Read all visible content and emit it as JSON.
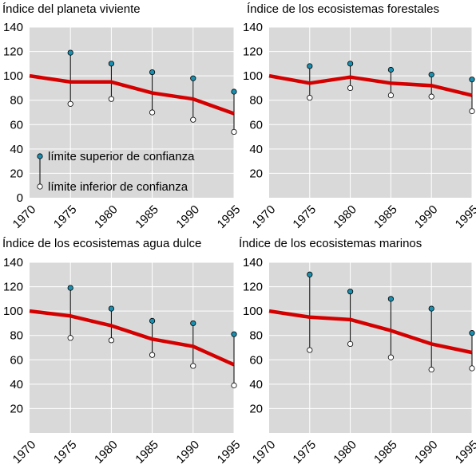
{
  "colors": {
    "plot_background": "#d9d9d9",
    "grid": "#ffffff",
    "index_line": "#d40000",
    "upper_marker": "#1b8fb0",
    "lower_marker": "#ffffff",
    "whisker": "#000000"
  },
  "legend": {
    "upper_label": "límite superior de confianza",
    "lower_label": "límite inferior de confianza"
  },
  "chart_data": [
    {
      "type": "line",
      "title": "Índice del planeta viviente",
      "xlabel": "",
      "ylabel": "",
      "x": [
        1970,
        1975,
        1980,
        1985,
        1990,
        1995
      ],
      "xtick_labels": [
        "1970",
        "1975",
        "1980",
        "1985",
        "1990",
        "1995"
      ],
      "ytick_labels": [
        "0",
        "20",
        "40",
        "60",
        "80",
        "100",
        "120",
        "140"
      ],
      "ylim": [
        0,
        140
      ],
      "grid": true,
      "legend_position": "bottom-left",
      "series": [
        {
          "values": [
            100,
            95,
            95,
            86,
            81,
            69
          ]
        }
      ],
      "confidence": [
        {
          "x": 1975,
          "upper": 119,
          "lower": 77
        },
        {
          "x": 1980,
          "upper": 110,
          "lower": 81
        },
        {
          "x": 1985,
          "upper": 103,
          "lower": 70
        },
        {
          "x": 1990,
          "upper": 98,
          "lower": 64
        },
        {
          "x": 1995,
          "upper": 87,
          "lower": 54
        }
      ]
    },
    {
      "type": "line",
      "title": "Índice de los ecosistemas forestales",
      "xlabel": "",
      "ylabel": "",
      "x": [
        1970,
        1975,
        1980,
        1985,
        1990,
        1995
      ],
      "xtick_labels": [
        "1970",
        "1975",
        "1980",
        "1985",
        "1990",
        "1995"
      ],
      "ytick_labels": [
        "20",
        "40",
        "60",
        "80",
        "100",
        "120",
        "140"
      ],
      "ylim": [
        0,
        140
      ],
      "grid": true,
      "series": [
        {
          "values": [
            100,
            94,
            99,
            94,
            92,
            84
          ]
        }
      ],
      "confidence": [
        {
          "x": 1975,
          "upper": 108,
          "lower": 82
        },
        {
          "x": 1980,
          "upper": 110,
          "lower": 90
        },
        {
          "x": 1985,
          "upper": 105,
          "lower": 84
        },
        {
          "x": 1990,
          "upper": 101,
          "lower": 83
        },
        {
          "x": 1995,
          "upper": 97,
          "lower": 71
        }
      ]
    },
    {
      "type": "line",
      "title": "Índice de los ecosistemas agua dulce",
      "xlabel": "",
      "ylabel": "",
      "x": [
        1970,
        1975,
        1980,
        1985,
        1990,
        1995
      ],
      "xtick_labels": [
        "1970",
        "1975",
        "1980",
        "1985",
        "1990",
        "1995"
      ],
      "ytick_labels": [
        "20",
        "40",
        "60",
        "80",
        "100",
        "120",
        "140"
      ],
      "ylim": [
        0,
        140
      ],
      "grid": true,
      "series": [
        {
          "values": [
            100,
            96,
            88,
            77,
            71,
            56
          ]
        }
      ],
      "confidence": [
        {
          "x": 1975,
          "upper": 119,
          "lower": 78
        },
        {
          "x": 1980,
          "upper": 102,
          "lower": 76
        },
        {
          "x": 1985,
          "upper": 92,
          "lower": 64
        },
        {
          "x": 1990,
          "upper": 90,
          "lower": 55
        },
        {
          "x": 1995,
          "upper": 81,
          "lower": 39
        }
      ]
    },
    {
      "type": "line",
      "title": "Índice de los ecosistemas marinos",
      "xlabel": "",
      "ylabel": "",
      "x": [
        1970,
        1975,
        1980,
        1985,
        1990,
        1995
      ],
      "xtick_labels": [
        "1970",
        "1975",
        "1980",
        "1985",
        "1990",
        "1995"
      ],
      "ytick_labels": [
        "20",
        "40",
        "60",
        "80",
        "100",
        "120",
        "140"
      ],
      "ylim": [
        0,
        140
      ],
      "grid": true,
      "series": [
        {
          "values": [
            100,
            95,
            93,
            84,
            73,
            66
          ]
        }
      ],
      "confidence": [
        {
          "x": 1975,
          "upper": 130,
          "lower": 68
        },
        {
          "x": 1980,
          "upper": 116,
          "lower": 73
        },
        {
          "x": 1985,
          "upper": 110,
          "lower": 62
        },
        {
          "x": 1990,
          "upper": 102,
          "lower": 52
        },
        {
          "x": 1995,
          "upper": 82,
          "lower": 53
        }
      ]
    }
  ]
}
